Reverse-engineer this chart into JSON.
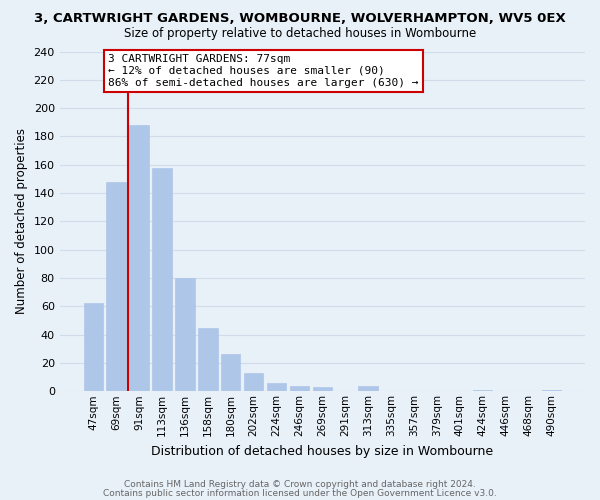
{
  "title": "3, CARTWRIGHT GARDENS, WOMBOURNE, WOLVERHAMPTON, WV5 0EX",
  "subtitle": "Size of property relative to detached houses in Wombourne",
  "xlabel": "Distribution of detached houses by size in Wombourne",
  "ylabel": "Number of detached properties",
  "bar_labels": [
    "47sqm",
    "69sqm",
    "91sqm",
    "113sqm",
    "136sqm",
    "158sqm",
    "180sqm",
    "202sqm",
    "224sqm",
    "246sqm",
    "269sqm",
    "291sqm",
    "313sqm",
    "335sqm",
    "357sqm",
    "379sqm",
    "401sqm",
    "424sqm",
    "446sqm",
    "468sqm",
    "490sqm"
  ],
  "bar_values": [
    62,
    148,
    188,
    158,
    80,
    45,
    26,
    13,
    6,
    4,
    3,
    0,
    4,
    0,
    0,
    0,
    0,
    1,
    0,
    0,
    1
  ],
  "bar_color": "#aec6e8",
  "bar_edge_color": "#aec6e8",
  "grid_color": "#d0dce8",
  "bg_color": "#e8f0f8",
  "vline_x": 1.5,
  "vline_color": "#cc0000",
  "annotation_line1": "3 CARTWRIGHT GARDENS: 77sqm",
  "annotation_line2": "← 12% of detached houses are smaller (90)",
  "annotation_line3": "86% of semi-detached houses are larger (630) →",
  "annotation_box_color": "#ffffff",
  "annotation_box_edge": "#cc0000",
  "ylim": [
    0,
    240
  ],
  "yticks": [
    0,
    20,
    40,
    60,
    80,
    100,
    120,
    140,
    160,
    180,
    200,
    220,
    240
  ],
  "footer1": "Contains HM Land Registry data © Crown copyright and database right 2024.",
  "footer2": "Contains public sector information licensed under the Open Government Licence v3.0."
}
